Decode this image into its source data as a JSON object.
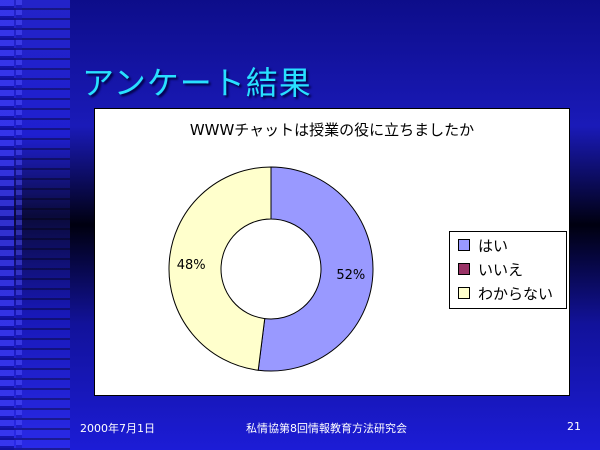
{
  "slide": {
    "title": "アンケート結果",
    "footer_date": "2000年7月1日",
    "footer_center": "私情協第8回情報教育方法研究会",
    "page_number": "21"
  },
  "chart_data": {
    "type": "pie",
    "title": "WWWチャットは授業の役に立ちましたか",
    "categories": [
      "はい",
      "いいえ",
      "わからない"
    ],
    "values": [
      52,
      0,
      48
    ],
    "data_labels": [
      "52%",
      "",
      "48%"
    ],
    "colors": [
      "#9999ff",
      "#993366",
      "#ffffcc"
    ],
    "legend_position": "right"
  }
}
